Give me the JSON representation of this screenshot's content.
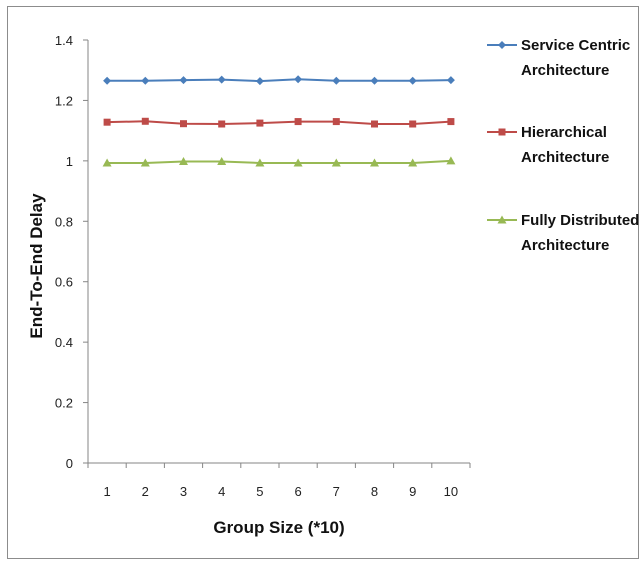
{
  "chart_data": {
    "type": "line",
    "title": "",
    "xlabel": "Group Size (*10)",
    "ylabel": "End-To-End Delay",
    "categories": [
      "1",
      "2",
      "3",
      "4",
      "5",
      "6",
      "7",
      "8",
      "9",
      "10"
    ],
    "ylim": [
      0,
      1.4
    ],
    "yticks": [
      "0",
      "0.2",
      "0.4",
      "0.6",
      "0.8",
      "1",
      "1.2",
      "1.4"
    ],
    "grid": false,
    "legend_position": "right",
    "series": [
      {
        "name": "Service Centric Architecture",
        "legend_lines": [
          "Service Centric",
          "Architecture"
        ],
        "color": "#4a7ebb",
        "marker": "diamond",
        "values": [
          1.265,
          1.265,
          1.267,
          1.269,
          1.264,
          1.27,
          1.265,
          1.265,
          1.265,
          1.267
        ]
      },
      {
        "name": "Hierarchical Architecture",
        "legend_lines": [
          "Hierarchical",
          "Architecture"
        ],
        "color": "#be4b48",
        "marker": "square",
        "values": [
          1.128,
          1.131,
          1.123,
          1.122,
          1.125,
          1.13,
          1.13,
          1.122,
          1.122,
          1.13
        ]
      },
      {
        "name": "Fully Distributed Architecture",
        "legend_lines": [
          "Fully Distributed",
          "Architecture"
        ],
        "color": "#98b954",
        "marker": "triangle",
        "values": [
          0.993,
          0.993,
          0.998,
          0.998,
          0.993,
          0.993,
          0.993,
          0.993,
          0.993,
          1.0
        ]
      }
    ]
  }
}
